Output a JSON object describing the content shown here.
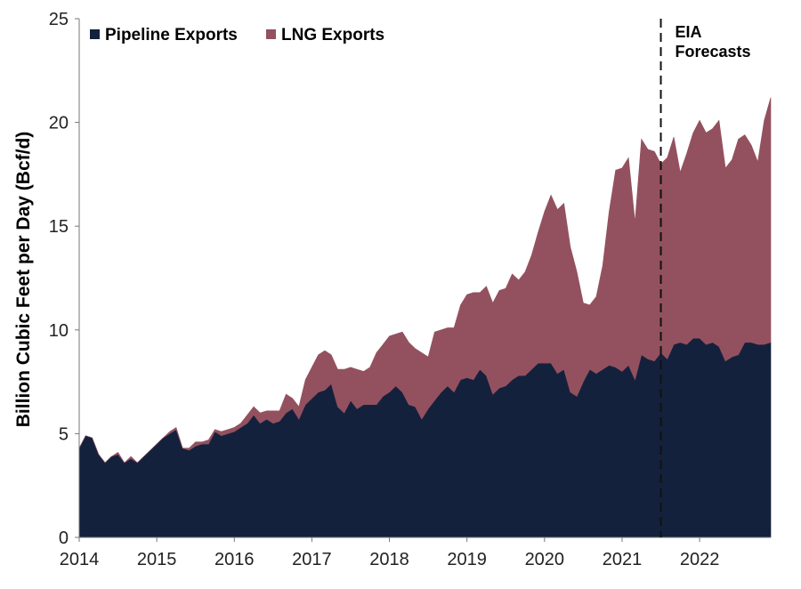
{
  "chart_data": {
    "type": "area",
    "stacked": true,
    "ylabel": "Billion Cubic Feet per Day (Bcf/d)",
    "xlabel": "",
    "ylim": [
      0,
      25
    ],
    "yticks": [
      0,
      5,
      10,
      15,
      20,
      25
    ],
    "xlim": [
      2014,
      2022.917
    ],
    "xticks": [
      2014,
      2015,
      2016,
      2017,
      2018,
      2019,
      2020,
      2021,
      2022
    ],
    "xtick_labels": [
      "2014",
      "2015",
      "2016",
      "2017",
      "2018",
      "2019",
      "2020",
      "2021",
      "2022"
    ],
    "grid": false,
    "legend_position": "top-left",
    "x": [
      2014.0,
      2014.083,
      2014.167,
      2014.25,
      2014.333,
      2014.417,
      2014.5,
      2014.583,
      2014.667,
      2014.75,
      2014.833,
      2014.917,
      2015.0,
      2015.083,
      2015.167,
      2015.25,
      2015.333,
      2015.417,
      2015.5,
      2015.583,
      2015.667,
      2015.75,
      2015.833,
      2015.917,
      2016.0,
      2016.083,
      2016.167,
      2016.25,
      2016.333,
      2016.417,
      2016.5,
      2016.583,
      2016.667,
      2016.75,
      2016.833,
      2016.917,
      2017.0,
      2017.083,
      2017.167,
      2017.25,
      2017.333,
      2017.417,
      2017.5,
      2017.583,
      2017.667,
      2017.75,
      2017.833,
      2017.917,
      2018.0,
      2018.083,
      2018.167,
      2018.25,
      2018.333,
      2018.417,
      2018.5,
      2018.583,
      2018.667,
      2018.75,
      2018.833,
      2018.917,
      2019.0,
      2019.083,
      2019.167,
      2019.25,
      2019.333,
      2019.417,
      2019.5,
      2019.583,
      2019.667,
      2019.75,
      2019.833,
      2019.917,
      2020.0,
      2020.083,
      2020.167,
      2020.25,
      2020.333,
      2020.417,
      2020.5,
      2020.583,
      2020.667,
      2020.75,
      2020.833,
      2020.917,
      2021.0,
      2021.083,
      2021.167,
      2021.25,
      2021.333,
      2021.417,
      2021.5,
      2021.583,
      2021.667,
      2021.75,
      2021.833,
      2021.917,
      2022.0,
      2022.083,
      2022.167,
      2022.25,
      2022.333,
      2022.417,
      2022.5,
      2022.583,
      2022.667,
      2022.75,
      2022.833,
      2022.917
    ],
    "series": [
      {
        "name": "Pipeline Exports",
        "color": "#14213d",
        "values": [
          4.3,
          4.9,
          4.8,
          4.0,
          3.6,
          3.9,
          4.0,
          3.6,
          3.8,
          3.6,
          3.9,
          4.2,
          4.5,
          4.8,
          5.0,
          5.2,
          4.3,
          4.2,
          4.4,
          4.5,
          4.5,
          5.1,
          4.9,
          5.0,
          5.1,
          5.3,
          5.5,
          5.9,
          5.5,
          5.7,
          5.5,
          5.6,
          6.0,
          6.2,
          5.7,
          6.4,
          6.7,
          7.0,
          7.1,
          7.4,
          6.3,
          6.0,
          6.6,
          6.2,
          6.4,
          6.4,
          6.4,
          6.8,
          7.0,
          7.3,
          7.0,
          6.4,
          6.3,
          5.7,
          6.2,
          6.6,
          7.0,
          7.3,
          7.0,
          7.6,
          7.7,
          7.6,
          8.1,
          7.8,
          6.9,
          7.2,
          7.3,
          7.6,
          7.8,
          7.8,
          8.1,
          8.4,
          8.4,
          8.4,
          7.9,
          8.1,
          7.0,
          6.8,
          7.5,
          8.1,
          7.9,
          8.1,
          8.3,
          8.2,
          8.0,
          8.3,
          7.6,
          8.8,
          8.6,
          8.5,
          8.9,
          8.6,
          9.3,
          9.4,
          9.3,
          9.6,
          9.6,
          9.3,
          9.4,
          9.2,
          8.5,
          8.7,
          8.8,
          9.4,
          9.4,
          9.3,
          9.3,
          9.4
        ]
      },
      {
        "name": "LNG Exports",
        "color": "#93515f",
        "values": [
          0.0,
          0.0,
          0.0,
          0.0,
          0.0,
          0.0,
          0.1,
          0.0,
          0.1,
          0.0,
          0.0,
          0.0,
          0.0,
          0.0,
          0.1,
          0.1,
          0.0,
          0.1,
          0.2,
          0.1,
          0.2,
          0.1,
          0.2,
          0.2,
          0.2,
          0.2,
          0.4,
          0.4,
          0.5,
          0.4,
          0.6,
          0.5,
          0.9,
          0.5,
          0.6,
          1.2,
          1.5,
          1.8,
          1.9,
          1.4,
          1.8,
          2.1,
          1.6,
          1.9,
          1.6,
          1.8,
          2.5,
          2.5,
          2.7,
          2.5,
          2.9,
          3.0,
          2.8,
          3.2,
          2.5,
          3.3,
          3.0,
          2.8,
          3.1,
          3.6,
          4.0,
          4.2,
          3.7,
          4.3,
          4.4,
          4.7,
          4.7,
          5.1,
          4.6,
          5.0,
          5.5,
          6.3,
          7.3,
          8.1,
          7.9,
          8.0,
          7.0,
          6.0,
          3.8,
          3.1,
          3.7,
          5.0,
          7.4,
          9.5,
          9.8,
          10.0,
          7.6,
          10.4,
          10.1,
          10.1,
          9.1,
          9.7,
          10.0,
          8.2,
          9.2,
          9.9,
          10.5,
          10.2,
          10.3,
          10.9,
          9.3,
          9.5,
          10.4,
          10.0,
          9.5,
          8.8,
          10.8,
          11.8
        ]
      }
    ],
    "forecast_line": {
      "x": 2021.5,
      "label_lines": [
        "EIA",
        "Forecasts"
      ]
    }
  }
}
